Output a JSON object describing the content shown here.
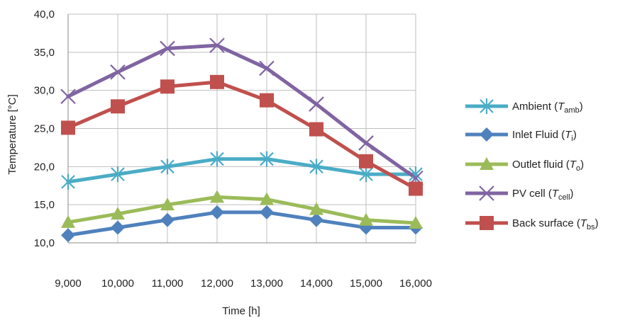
{
  "chart_data": {
    "type": "line",
    "xlabel": "Time [h]",
    "ylabel": "Temperature [°C]",
    "categories": [
      "9,000",
      "10,000",
      "11,000",
      "12,000",
      "13,000",
      "14,000",
      "15,000",
      "16,000"
    ],
    "ylim": [
      10,
      40
    ],
    "yticks": [
      "10,0",
      "15,0",
      "20,0",
      "25,0",
      "30,0",
      "35,0",
      "40,0"
    ],
    "grid": true,
    "legend_position": "right",
    "series": [
      {
        "name": "Ambient",
        "symbol": "T",
        "subscript": "amb",
        "color": "#4BACC6",
        "marker": "asterisk",
        "values": [
          18,
          19,
          20,
          21,
          21,
          20,
          19,
          19
        ]
      },
      {
        "name": "Inlet Fluid",
        "symbol": "T",
        "subscript": "i",
        "color": "#4F81BD",
        "marker": "diamond",
        "values": [
          11,
          12,
          13,
          14,
          14,
          13,
          12,
          12
        ]
      },
      {
        "name": "Outlet fluid",
        "symbol": "T",
        "subscript": "o",
        "color": "#9BBB59",
        "marker": "triangle",
        "values": [
          12.7,
          13.8,
          15,
          16,
          15.7,
          14.4,
          13,
          12.6
        ]
      },
      {
        "name": "PV cell",
        "symbol": "T",
        "subscript": "cell",
        "color": "#8064A2",
        "marker": "x",
        "values": [
          29.2,
          32.4,
          35.5,
          35.9,
          32.9,
          28.2,
          23.1,
          18.5
        ]
      },
      {
        "name": "Back surface",
        "symbol": "T",
        "subscript": "bs",
        "color": "#C0504D",
        "marker": "square",
        "values": [
          25.1,
          27.9,
          30.5,
          31.1,
          28.7,
          24.9,
          20.7,
          17.1
        ]
      }
    ]
  }
}
